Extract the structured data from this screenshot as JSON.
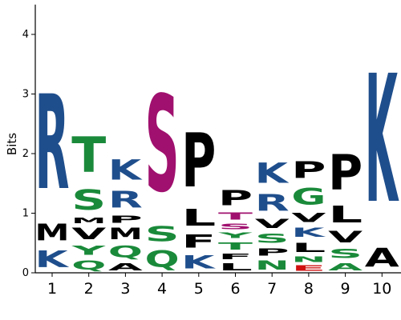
{
  "chart_data": {
    "type": "sequence-logo",
    "ylabel": "Bits",
    "ylim": [
      0,
      4.5
    ],
    "y_ticks": [
      "0",
      "1",
      "2",
      "3",
      "4"
    ],
    "colors": {
      "black": "#000000",
      "blue": "#1f4e8c",
      "green": "#1a8a3a",
      "purple": "#a0106e",
      "red": "#d01010"
    },
    "positions": [
      {
        "label": "1",
        "stack": [
          {
            "letter": "K",
            "bits": 0.45,
            "color": "blue"
          },
          {
            "letter": "M",
            "bits": 0.45,
            "color": "black"
          },
          {
            "letter": "R",
            "bits": 2.55,
            "color": "blue"
          }
        ]
      },
      {
        "label": "2",
        "stack": [
          {
            "letter": "Q",
            "bits": 0.25,
            "color": "green"
          },
          {
            "letter": "Y",
            "bits": 0.25,
            "color": "green"
          },
          {
            "letter": "V",
            "bits": 0.3,
            "color": "black"
          },
          {
            "letter": "M",
            "bits": 0.15,
            "color": "black"
          },
          {
            "letter": "S",
            "bits": 0.55,
            "color": "green"
          },
          {
            "letter": "T",
            "bits": 0.95,
            "color": "green"
          }
        ]
      },
      {
        "label": "3",
        "stack": [
          {
            "letter": "A",
            "bits": 0.2,
            "color": "black"
          },
          {
            "letter": "Q",
            "bits": 0.3,
            "color": "green"
          },
          {
            "letter": "M",
            "bits": 0.3,
            "color": "black"
          },
          {
            "letter": "P",
            "bits": 0.2,
            "color": "black"
          },
          {
            "letter": "R",
            "bits": 0.45,
            "color": "blue"
          },
          {
            "letter": "K",
            "bits": 0.55,
            "color": "blue"
          }
        ]
      },
      {
        "label": "4",
        "stack": [
          {
            "letter": "Q",
            "bits": 0.45,
            "color": "green"
          },
          {
            "letter": "S",
            "bits": 0.4,
            "color": "green"
          },
          {
            "letter": "S",
            "bits": 2.6,
            "color": "purple"
          }
        ]
      },
      {
        "label": "5",
        "stack": [
          {
            "letter": "K",
            "bits": 0.35,
            "color": "blue"
          },
          {
            "letter": "F",
            "bits": 0.35,
            "color": "black"
          },
          {
            "letter": "L",
            "bits": 0.45,
            "color": "black"
          },
          {
            "letter": "P",
            "bits": 1.45,
            "color": "black"
          }
        ]
      },
      {
        "label": "6",
        "stack": [
          {
            "letter": "L",
            "bits": 0.2,
            "color": "black"
          },
          {
            "letter": "F",
            "bits": 0.15,
            "color": "black"
          },
          {
            "letter": "T",
            "bits": 0.2,
            "color": "green"
          },
          {
            "letter": "Y",
            "bits": 0.15,
            "color": "green"
          },
          {
            "letter": "S",
            "bits": 0.15,
            "color": "purple"
          },
          {
            "letter": "T",
            "bits": 0.2,
            "color": "purple"
          },
          {
            "letter": "P",
            "bits": 0.4,
            "color": "black"
          }
        ]
      },
      {
        "label": "7",
        "stack": [
          {
            "letter": "N",
            "bits": 0.25,
            "color": "green"
          },
          {
            "letter": "P",
            "bits": 0.2,
            "color": "black"
          },
          {
            "letter": "S",
            "bits": 0.25,
            "color": "green"
          },
          {
            "letter": "V",
            "bits": 0.25,
            "color": "black"
          },
          {
            "letter": "R",
            "bits": 0.45,
            "color": "blue"
          },
          {
            "letter": "K",
            "bits": 0.55,
            "color": "blue"
          }
        ]
      },
      {
        "label": "8",
        "stack": [
          {
            "letter": "E",
            "bits": 0.15,
            "color": "red"
          },
          {
            "letter": "N",
            "bits": 0.15,
            "color": "green"
          },
          {
            "letter": "L",
            "bits": 0.25,
            "color": "black"
          },
          {
            "letter": "K",
            "bits": 0.25,
            "color": "blue"
          },
          {
            "letter": "V",
            "bits": 0.25,
            "color": "black"
          },
          {
            "letter": "G",
            "bits": 0.45,
            "color": "green"
          },
          {
            "letter": "P",
            "bits": 0.45,
            "color": "black"
          }
        ]
      },
      {
        "label": "9",
        "stack": [
          {
            "letter": "A",
            "bits": 0.2,
            "color": "green"
          },
          {
            "letter": "S",
            "bits": 0.25,
            "color": "green"
          },
          {
            "letter": "V",
            "bits": 0.3,
            "color": "black"
          },
          {
            "letter": "L",
            "bits": 0.45,
            "color": "black"
          },
          {
            "letter": "P",
            "bits": 0.95,
            "color": "black"
          }
        ]
      },
      {
        "label": "10",
        "stack": [
          {
            "letter": "A",
            "bits": 0.5,
            "color": "black"
          },
          {
            "letter": "K",
            "bits": 3.45,
            "color": "blue"
          }
        ]
      }
    ]
  }
}
